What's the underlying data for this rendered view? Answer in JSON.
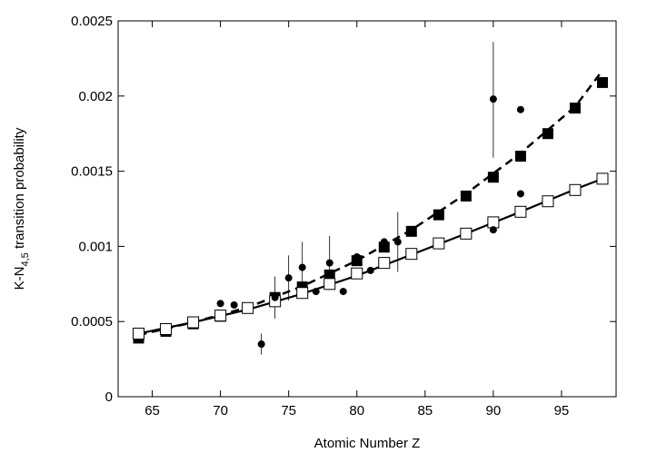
{
  "chart_data": {
    "type": "scatter",
    "title": "",
    "xlabel": "Atomic Number Z",
    "ylabel": {
      "main": "K-N",
      "subscript": "4,5",
      "suffix": " transition probability"
    },
    "xlim": [
      62.5,
      99
    ],
    "ylim": [
      0,
      0.0025
    ],
    "x_ticks": [
      {
        "value": 65,
        "label": "65"
      },
      {
        "value": 70,
        "label": "70"
      },
      {
        "value": 75,
        "label": "75"
      },
      {
        "value": 80,
        "label": "80"
      },
      {
        "value": 85,
        "label": "85"
      },
      {
        "value": 90,
        "label": "90"
      },
      {
        "value": 95,
        "label": "95"
      }
    ],
    "y_ticks": [
      {
        "value": 0,
        "label": "0"
      },
      {
        "value": 0.0005,
        "label": "0.0005"
      },
      {
        "value": 0.001,
        "label": "0.001"
      },
      {
        "value": 0.0015,
        "label": "0.0015"
      },
      {
        "value": 0.002,
        "label": "0.002"
      },
      {
        "value": 0.0025,
        "label": "0.0025"
      }
    ],
    "grid": false,
    "legend": "none",
    "series": [
      {
        "marker": "filled-square",
        "color": "#000000",
        "x": [
          64,
          66,
          68,
          70,
          72,
          74,
          76,
          78,
          80,
          82,
          84,
          86,
          88,
          90,
          92,
          94,
          96,
          98
        ],
        "y": [
          0.00039,
          0.000435,
          0.000485,
          0.000535,
          0.00059,
          0.00066,
          0.00073,
          0.00081,
          0.000905,
          0.000995,
          0.0011,
          0.00121,
          0.001335,
          0.00146,
          0.0016,
          0.00175,
          0.00192,
          0.00209
        ]
      },
      {
        "marker": "open-square",
        "color": "#000000",
        "x": [
          64,
          66,
          68,
          70,
          72,
          74,
          76,
          78,
          80,
          82,
          84,
          86,
          88,
          90,
          92,
          94,
          96,
          98
        ],
        "y": [
          0.00042,
          0.00045,
          0.000495,
          0.00054,
          0.00059,
          0.000635,
          0.00069,
          0.00075,
          0.00082,
          0.00089,
          0.00095,
          0.00102,
          0.001085,
          0.00116,
          0.00123,
          0.0013,
          0.001375,
          0.00145
        ]
      },
      {
        "marker": "filled-circle",
        "color": "#000000",
        "x": [
          70,
          71,
          73,
          74,
          75,
          76,
          77,
          78,
          79,
          80,
          81,
          82,
          83,
          90,
          90,
          92,
          92
        ],
        "y": [
          0.00062,
          0.00061,
          0.00035,
          0.00066,
          0.00079,
          0.00086,
          0.0007,
          0.00089,
          0.0007,
          0.00093,
          0.00084,
          0.00103,
          0.00103,
          0.00198,
          0.00111,
          0.00191,
          0.00135
        ],
        "error_bars": [
          {
            "x": 73,
            "low": 0.00028,
            "high": 0.00042
          },
          {
            "x": 74,
            "low": 0.00052,
            "high": 0.0008
          },
          {
            "x": 75,
            "low": 0.00064,
            "high": 0.00094
          },
          {
            "x": 76,
            "low": 0.0007,
            "high": 0.00103
          },
          {
            "x": 78,
            "low": 0.00071,
            "high": 0.00107
          },
          {
            "x": 83,
            "low": 0.00083,
            "high": 0.00123
          },
          {
            "x": 90,
            "low": 0.00159,
            "high": 0.00236
          }
        ]
      },
      {
        "marker": "none",
        "line_style": "dashed",
        "color": "#000000",
        "x": [
          64,
          68,
          72,
          76,
          80,
          84,
          88,
          92,
          96,
          98
        ],
        "y": [
          0.00041,
          0.000495,
          0.000595,
          0.000735,
          0.000905,
          0.00111,
          0.00135,
          0.00162,
          0.00193,
          0.00217
        ]
      },
      {
        "marker": "none",
        "line_style": "solid",
        "color": "#000000",
        "x": [
          64,
          68,
          72,
          76,
          80,
          84,
          88,
          92,
          96,
          98
        ],
        "y": [
          0.00042,
          0.000495,
          0.00058,
          0.000685,
          0.000805,
          0.000945,
          0.001085,
          0.00123,
          0.00138,
          0.00145
        ]
      }
    ]
  }
}
